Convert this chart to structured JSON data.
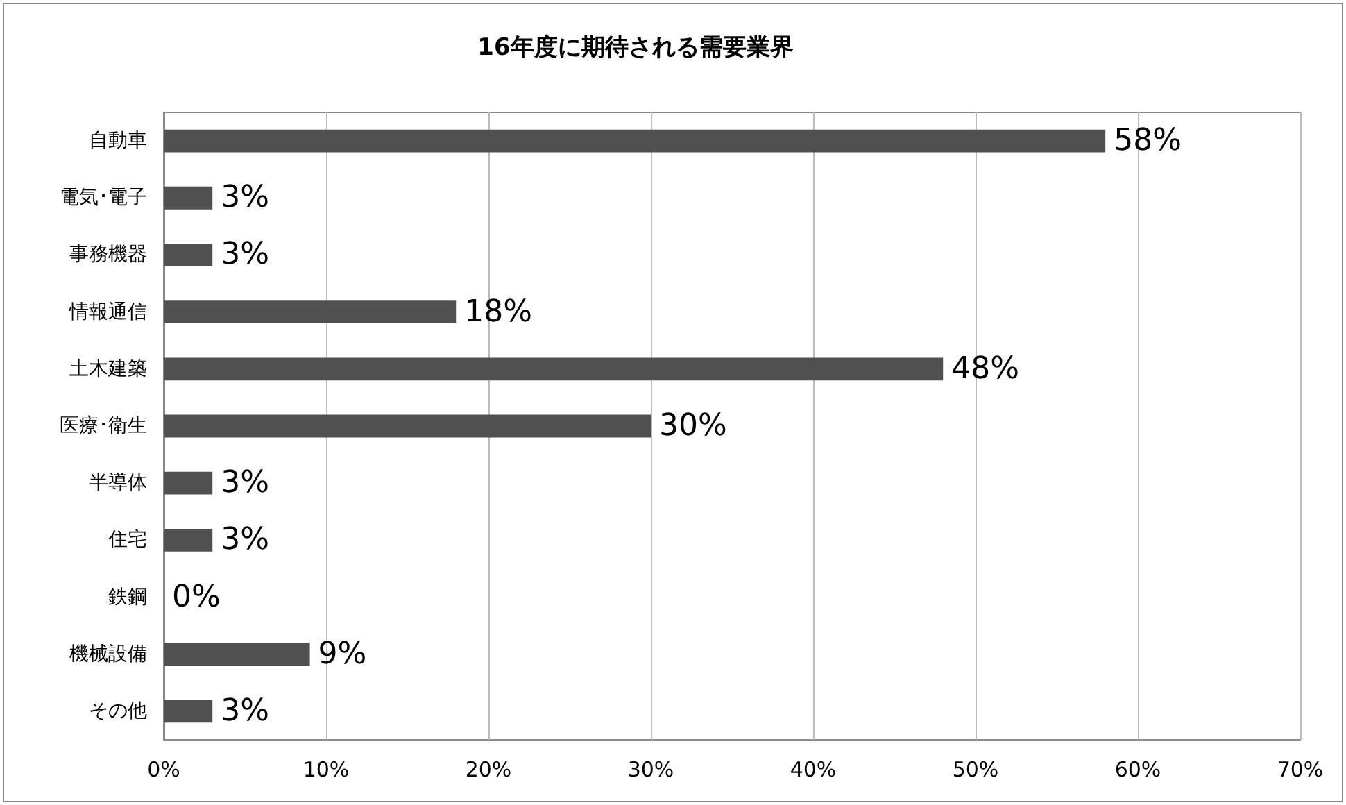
{
  "chart_data": {
    "type": "bar",
    "orientation": "horizontal",
    "title": "16年度に期待される需要業界",
    "categories": [
      "自動車",
      "電気･電子",
      "事務機器",
      "情報通信",
      "土木建築",
      "医療･衛生",
      "半導体",
      "住宅",
      "鉄鋼",
      "機械設備",
      "その他"
    ],
    "values": [
      58,
      3,
      3,
      18,
      48,
      30,
      3,
      3,
      0,
      9,
      3
    ],
    "value_labels": [
      "58%",
      "3%",
      "3%",
      "18%",
      "48%",
      "30%",
      "3%",
      "3%",
      "0%",
      "9%",
      "3%"
    ],
    "color": "#505050",
    "xlim": [
      0,
      70
    ],
    "xticks": [
      {
        "value": 0,
        "label": "0%"
      },
      {
        "value": 10,
        "label": "10%"
      },
      {
        "value": 20,
        "label": "20%"
      },
      {
        "value": 30,
        "label": "30%"
      },
      {
        "value": 40,
        "label": "40%"
      },
      {
        "value": 50,
        "label": "50%"
      },
      {
        "value": 60,
        "label": "60%"
      },
      {
        "value": 70,
        "label": "70%"
      }
    ],
    "grid": "x"
  }
}
